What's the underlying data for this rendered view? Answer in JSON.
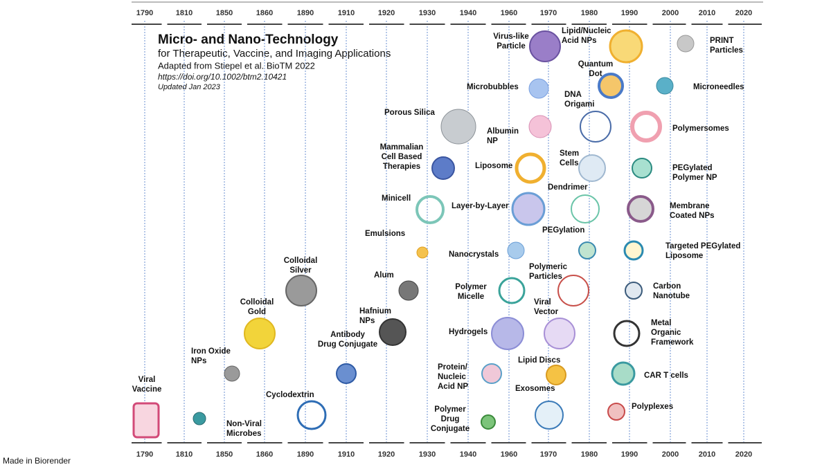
{
  "title": "Micro- and Nano-Technology",
  "subtitle": "for Therapeutic, Vaccine, and Imaging Applications",
  "source": "Adapted from Stiepel et al. BioTM 2022",
  "doi": "https://doi.org/10.1002/btm2.10421",
  "updated": "Updated Jan 2023",
  "footer": "Made in Biorender",
  "timeline": [
    "1790",
    "1810",
    "1850",
    "1860",
    "1890",
    "1910",
    "1920",
    "1930",
    "1940",
    "1960",
    "1970",
    "1980",
    "1990",
    "2000",
    "2010",
    "2020"
  ],
  "items": [
    {
      "lines": [
        "Viral",
        "Vaccine"
      ]
    },
    {
      "lines": [
        "Iron Oxide",
        "NPs"
      ]
    },
    {
      "lines": [
        "Non-Viral",
        "Microbes"
      ]
    },
    {
      "lines": [
        "Colloidal",
        "Gold"
      ]
    },
    {
      "lines": [
        "Colloidal",
        "Silver"
      ]
    },
    {
      "lines": [
        "Cyclodextrin"
      ]
    },
    {
      "lines": [
        "Antibody",
        "Drug Conjugate"
      ]
    },
    {
      "lines": [
        "Hafnium",
        "NPs"
      ]
    },
    {
      "lines": [
        "Alum"
      ]
    },
    {
      "lines": [
        "Emulsions"
      ]
    },
    {
      "lines": [
        "Minicell"
      ]
    },
    {
      "lines": [
        "Mammalian",
        "Cell Based",
        "Therapies"
      ]
    },
    {
      "lines": [
        "Porous  Silica"
      ]
    },
    {
      "lines": [
        "Polymer",
        "Drug",
        "Conjugate"
      ]
    },
    {
      "lines": [
        "Protein/",
        "Nucleic",
        "Acid NP"
      ]
    },
    {
      "lines": [
        "Hydrogels"
      ]
    },
    {
      "lines": [
        "Polymer",
        "Micelle"
      ]
    },
    {
      "lines": [
        "Nanocrystals"
      ]
    },
    {
      "lines": [
        "Layer-by-Layer"
      ]
    },
    {
      "lines": [
        "Liposome"
      ]
    },
    {
      "lines": [
        "Albumin",
        "NP"
      ]
    },
    {
      "lines": [
        "Microbubbles"
      ]
    },
    {
      "lines": [
        "Virus-like",
        "Particle"
      ]
    },
    {
      "lines": [
        "Lipid/Nucleic",
        "Acid NPs"
      ]
    },
    {
      "lines": [
        "Quantum",
        "Dot"
      ]
    },
    {
      "lines": [
        "DNA",
        "Origami"
      ]
    },
    {
      "lines": [
        "Stem",
        "Cells"
      ]
    },
    {
      "lines": [
        "Dendrimer"
      ]
    },
    {
      "lines": [
        "PEGylation"
      ]
    },
    {
      "lines": [
        "Polymeric",
        "Particles"
      ]
    },
    {
      "lines": [
        "Viral",
        "Vector"
      ]
    },
    {
      "lines": [
        "Lipid Discs"
      ]
    },
    {
      "lines": [
        "Exosomes"
      ]
    },
    {
      "lines": [
        "PRINT",
        "Particles"
      ]
    },
    {
      "lines": [
        "Microneedles"
      ]
    },
    {
      "lines": [
        "Polymersomes"
      ]
    },
    {
      "lines": [
        "PEGylated",
        "Polymer  NP"
      ]
    },
    {
      "lines": [
        "Membrane",
        "Coated NPs"
      ]
    },
    {
      "lines": [
        "Targeted  PEGylated",
        "Liposome"
      ]
    },
    {
      "lines": [
        "Carbon",
        "Nanotube"
      ]
    },
    {
      "lines": [
        "Metal",
        "Organic",
        "Framework"
      ]
    },
    {
      "lines": [
        "CAR T cells"
      ]
    },
    {
      "lines": [
        "Polyplexes"
      ]
    }
  ]
}
